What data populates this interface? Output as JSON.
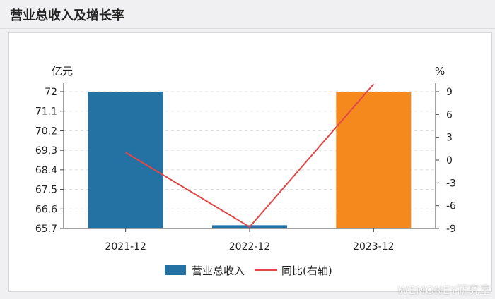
{
  "page": {
    "title": "营业总收入及增长率",
    "watermark": "WEMONEY研究室"
  },
  "chart_data": {
    "type": "bar",
    "categories": [
      "2021-12",
      "2022-12",
      "2023-12"
    ],
    "series": [
      {
        "name": "营业总收入",
        "kind": "bar",
        "axis": "left",
        "values": [
          72.0,
          65.85,
          72.0
        ],
        "colors": [
          "#2471a3",
          "#2471a3",
          "#f5891e"
        ]
      },
      {
        "name": "同比(右轴)",
        "kind": "line",
        "axis": "right",
        "values": [
          1.0,
          -8.8,
          10.0
        ],
        "color": "#e04848"
      }
    ],
    "left_axis": {
      "unit": "亿元",
      "ticks": [
        72,
        71.1,
        70.2,
        69.3,
        68.4,
        67.5,
        66.6,
        65.7
      ],
      "tick_labels": [
        "72",
        "71.1",
        "70.2",
        "69.3",
        "68.4",
        "67.5",
        "66.6",
        "65.7"
      ],
      "range": [
        65.7,
        72
      ]
    },
    "right_axis": {
      "unit": "%",
      "ticks": [
        9,
        6,
        3,
        0,
        -3,
        -6,
        -9
      ],
      "tick_labels": [
        "9",
        "6",
        "3",
        "0",
        "-3",
        "-6",
        "-9"
      ],
      "range": [
        -9,
        9
      ]
    },
    "grid": true,
    "legend": "bottom-center"
  }
}
